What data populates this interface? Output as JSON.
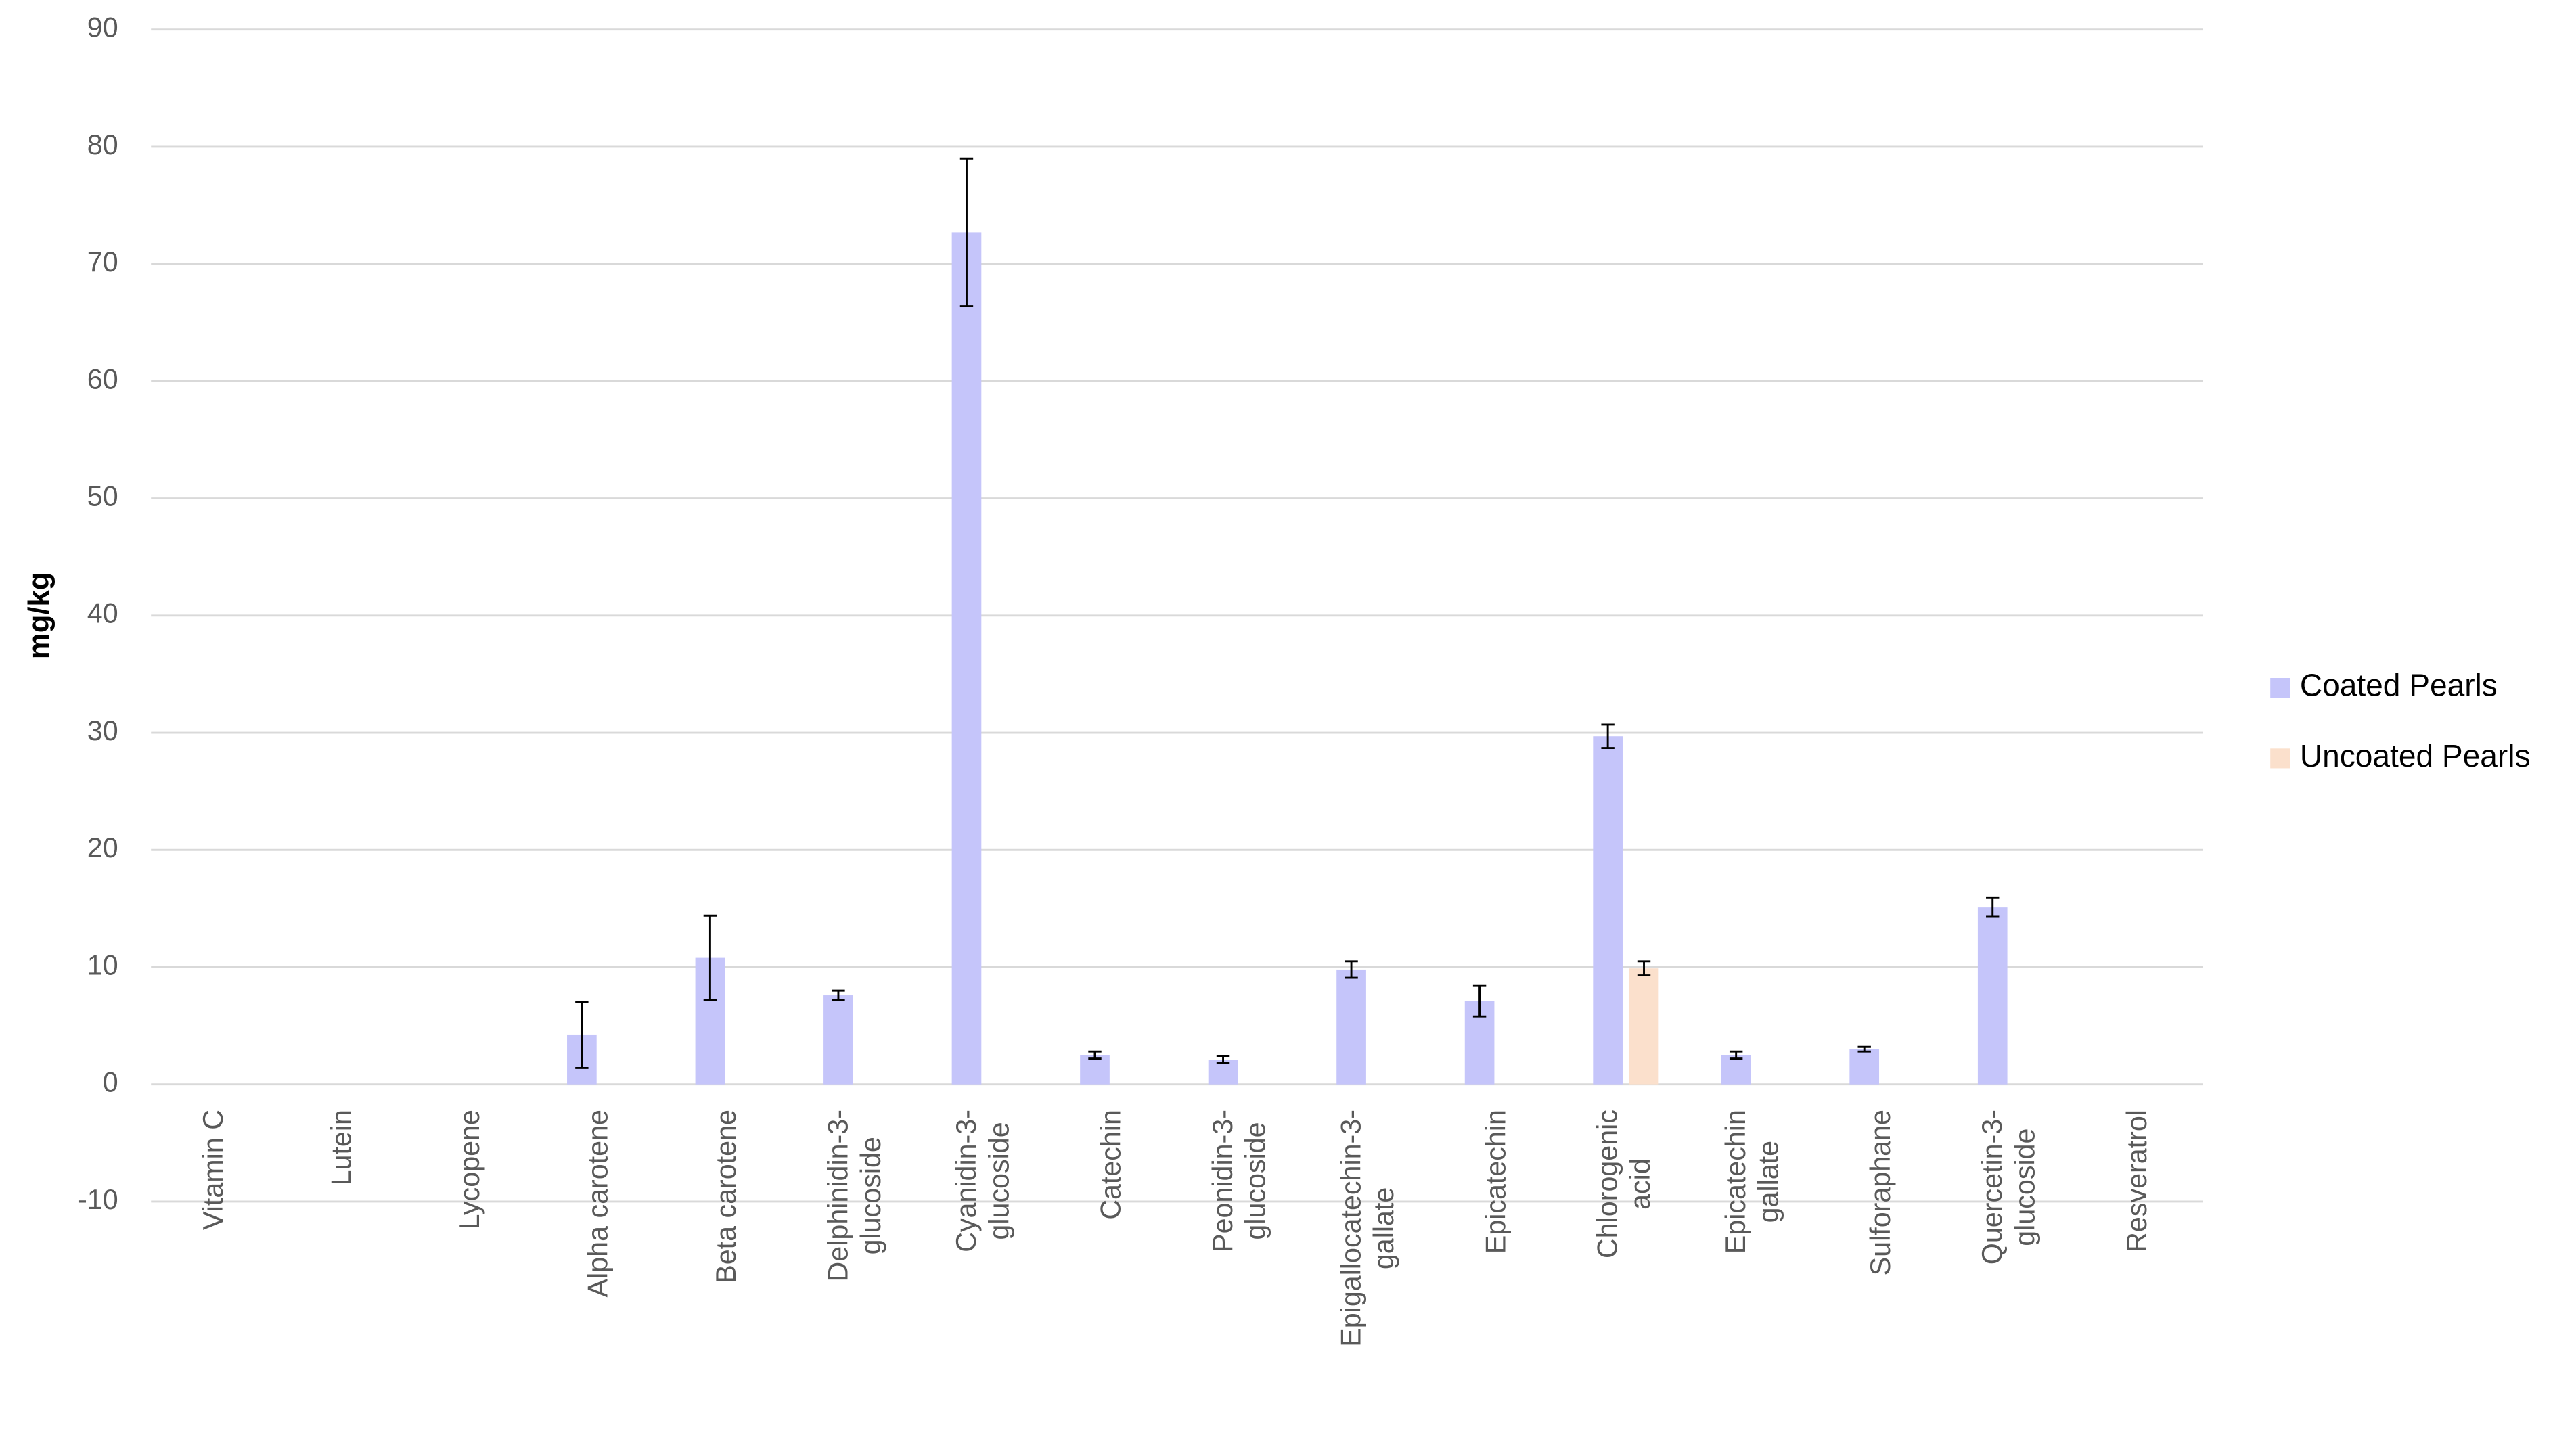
{
  "chart_data": {
    "type": "bar",
    "ylabel": "mg/kg",
    "categories": [
      "Vitamin C",
      "Lutein",
      "Lycopene",
      "Alpha carotene",
      "Beta carotene",
      "Delphinidin-3-\nglucoside",
      "Cyanidin-3-\nglucoside",
      "Catechin",
      "Peonidin-3-\nglucoside",
      "Epigallocatechin-3-\ngallate",
      "Epicatechin",
      "Chlorogenic\nacid",
      "Epicatechin\ngallate",
      "Sulforaphane",
      "Quercetin-3-\nglucoside",
      "Resveratrol"
    ],
    "series": [
      {
        "name": "Coated Pearls",
        "color": "#c5c5fa",
        "values": [
          0,
          0,
          0,
          4.2,
          10.8,
          7.6,
          72.7,
          2.5,
          2.1,
          9.8,
          7.1,
          29.7,
          2.5,
          3.0,
          15.1,
          0
        ],
        "errors": [
          null,
          null,
          null,
          2.8,
          3.6,
          0.4,
          6.3,
          0.3,
          0.3,
          0.7,
          1.3,
          1.0,
          0.3,
          0.2,
          0.8,
          null
        ]
      },
      {
        "name": "Uncoated Pearls",
        "color": "#fbe0cc",
        "values": [
          0,
          0,
          0,
          0,
          0,
          0,
          0,
          0,
          0,
          0,
          0,
          9.9,
          0,
          0,
          0,
          0
        ],
        "errors": [
          null,
          null,
          null,
          null,
          null,
          null,
          null,
          null,
          null,
          null,
          null,
          0.6,
          null,
          null,
          null,
          null
        ]
      }
    ],
    "ylim": [
      -10,
      90
    ],
    "yticks": [
      -10,
      0,
      10,
      20,
      30,
      40,
      50,
      60,
      70,
      80,
      90
    ],
    "grid": true,
    "legend": "right"
  }
}
